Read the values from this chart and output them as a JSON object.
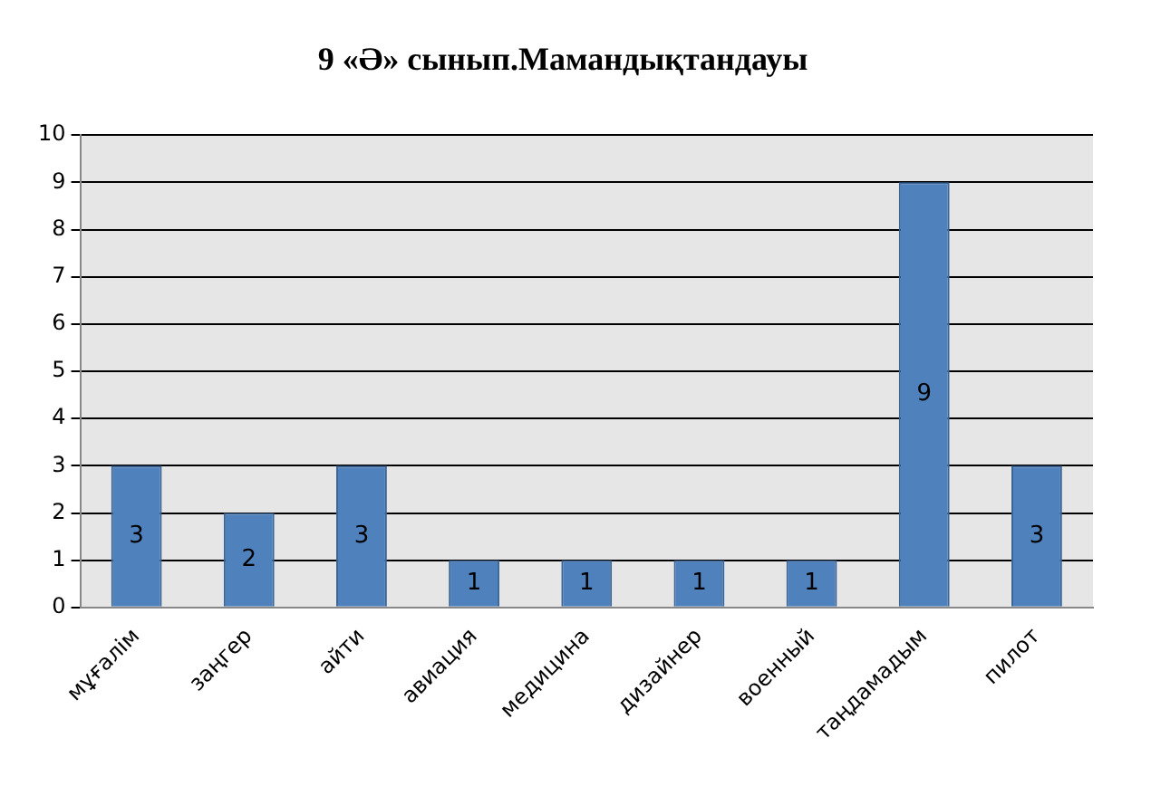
{
  "chart_data": {
    "type": "bar",
    "title": "9 «Ә» сынып.Мамандықтандауы",
    "categories": [
      "мұғалім",
      "заңгер",
      "айти",
      "авиация",
      "медицина",
      "дизайнер",
      "военный",
      "таңдамадым",
      "пилот"
    ],
    "values": [
      3,
      2,
      3,
      1,
      1,
      1,
      1,
      9,
      3
    ],
    "color": "#4f81bd",
    "ylim": [
      0,
      10
    ],
    "yticks": [
      0,
      1,
      2,
      3,
      4,
      5,
      6,
      7,
      8,
      9,
      10
    ],
    "grid": "y",
    "legend": false,
    "data_labels": true
  }
}
